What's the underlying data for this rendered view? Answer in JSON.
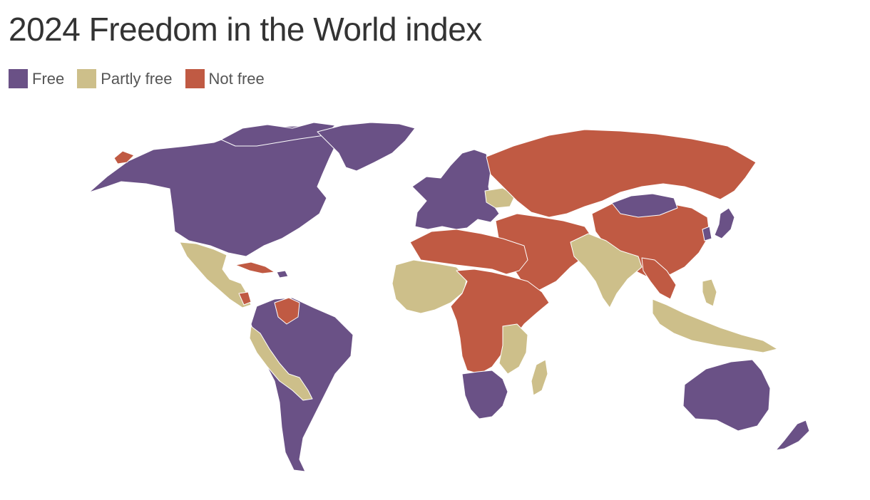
{
  "title": "2024 Freedom in the World index",
  "legend": {
    "items": [
      {
        "label": "Free",
        "color": "#6a5186"
      },
      {
        "label": "Partly free",
        "color": "#cdbf8a"
      },
      {
        "label": "Not free",
        "color": "#c05a43"
      }
    ]
  },
  "map": {
    "projection": "world",
    "categories": {
      "free": "#6a5186",
      "partly_free": "#cdbf8a",
      "not_free": "#c05a43"
    },
    "regions": [
      {
        "name": "North America",
        "status": "free"
      },
      {
        "name": "Greenland",
        "status": "free"
      },
      {
        "name": "Mexico & Central America",
        "status": "partly_free"
      },
      {
        "name": "Cuba",
        "status": "not_free"
      },
      {
        "name": "Venezuela",
        "status": "not_free"
      },
      {
        "name": "South America",
        "status": "free"
      },
      {
        "name": "Andean & Paraguay",
        "status": "partly_free"
      },
      {
        "name": "Western Europe",
        "status": "free"
      },
      {
        "name": "Russia & Central Asia",
        "status": "not_free"
      },
      {
        "name": "China",
        "status": "not_free"
      },
      {
        "name": "Mongolia",
        "status": "free"
      },
      {
        "name": "Japan",
        "status": "free"
      },
      {
        "name": "Middle East & North Africa",
        "status": "not_free"
      },
      {
        "name": "West Africa",
        "status": "partly_free"
      },
      {
        "name": "Central & East Africa",
        "status": "not_free"
      },
      {
        "name": "Southern Africa",
        "status": "free"
      },
      {
        "name": "Madagascar",
        "status": "partly_free"
      },
      {
        "name": "India & South Asia",
        "status": "partly_free"
      },
      {
        "name": "Southeast Asia",
        "status": "partly_free"
      },
      {
        "name": "Australia",
        "status": "free"
      },
      {
        "name": "New Zealand",
        "status": "free"
      }
    ]
  }
}
